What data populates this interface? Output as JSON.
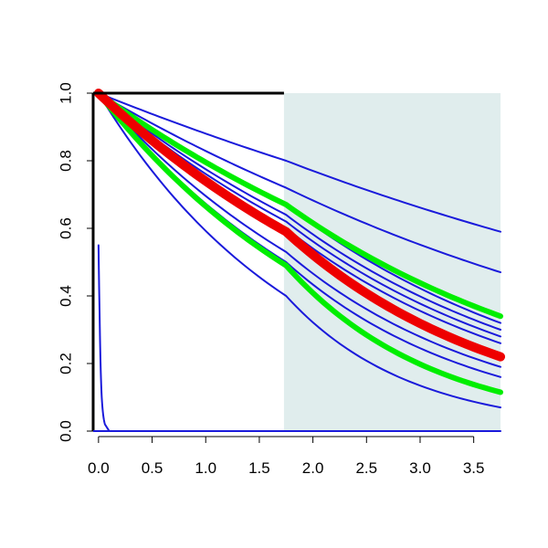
{
  "chart_data": {
    "type": "line",
    "title": "",
    "xlabel": "",
    "ylabel": "",
    "xlim": [
      -0.05,
      3.75
    ],
    "ylim": [
      0.0,
      1.0
    ],
    "x_ticks": [
      0.0,
      0.5,
      1.0,
      1.5,
      2.0,
      2.5,
      3.0,
      3.5
    ],
    "x_tick_labels": [
      "0.0",
      "0.5",
      "1.0",
      "1.5",
      "2.0",
      "2.5",
      "3.0",
      "3.5"
    ],
    "y_ticks": [
      0.0,
      0.2,
      0.4,
      0.6,
      0.8,
      1.0
    ],
    "y_tick_labels": [
      "0.0",
      "0.2",
      "0.4",
      "0.6",
      "0.8",
      "1.0"
    ],
    "grid": false,
    "shaded_region": {
      "x_start": 1.73,
      "x_end": 3.75,
      "color": "#e0eded"
    },
    "colors": {
      "blue": "#1a1adb",
      "green": "#00ee00",
      "red": "#ee0000",
      "axis": "#000000"
    },
    "series": [
      {
        "color": "#1a1adb",
        "x": [
          0,
          1.75,
          3.75
        ],
        "y": [
          1.0,
          0.8,
          0.59
        ]
      },
      {
        "color": "#1a1adb",
        "x": [
          0,
          1.75,
          3.75
        ],
        "y": [
          1.0,
          0.72,
          0.47
        ]
      },
      {
        "color": "#1a1adb",
        "x": [
          0,
          1.75,
          3.75
        ],
        "y": [
          1.0,
          0.67,
          0.32
        ]
      },
      {
        "color": "#1a1adb",
        "x": [
          0,
          1.75,
          3.75
        ],
        "y": [
          1.0,
          0.64,
          0.3
        ]
      },
      {
        "color": "#1a1adb",
        "x": [
          0,
          1.75,
          3.75
        ],
        "y": [
          1.0,
          0.62,
          0.28
        ]
      },
      {
        "color": "#1a1adb",
        "x": [
          0,
          1.75,
          3.75
        ],
        "y": [
          1.0,
          0.6,
          0.26
        ]
      },
      {
        "color": "#1a1adb",
        "x": [
          0,
          1.75,
          3.75
        ],
        "y": [
          1.0,
          0.58,
          0.23
        ]
      },
      {
        "color": "#1a1adb",
        "x": [
          0,
          1.75,
          3.75
        ],
        "y": [
          1.0,
          0.53,
          0.19
        ]
      },
      {
        "color": "#1a1adb",
        "x": [
          0,
          1.75,
          3.75
        ],
        "y": [
          1.0,
          0.5,
          0.16
        ]
      },
      {
        "color": "#1a1adb",
        "x": [
          0,
          1.75,
          3.75
        ],
        "y": [
          1.0,
          0.4,
          0.07
        ]
      },
      {
        "color": "#1a1adb",
        "x": [
          0,
          0.01,
          0.03,
          0.06,
          0.1,
          3.75
        ],
        "y": [
          0.55,
          0.35,
          0.1,
          0.02,
          0.0,
          0.0
        ]
      },
      {
        "color": "#00ee00",
        "x": [
          0,
          1.75,
          3.75
        ],
        "y": [
          1.0,
          0.67,
          0.34
        ]
      },
      {
        "color": "#00ee00",
        "x": [
          0,
          1.75,
          3.75
        ],
        "y": [
          1.0,
          0.49,
          0.115
        ]
      },
      {
        "color": "#ee0000",
        "x": [
          0,
          1.75,
          3.75
        ],
        "y": [
          1.0,
          0.59,
          0.22
        ]
      }
    ]
  }
}
